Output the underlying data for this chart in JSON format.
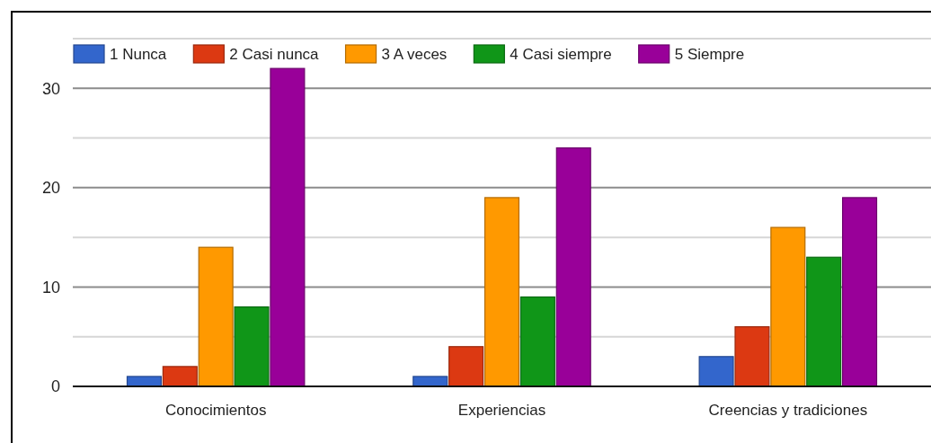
{
  "chart_data": {
    "type": "bar",
    "categories": [
      "Conocimientos",
      "Experiencias",
      "Creencias y tradiciones"
    ],
    "series": [
      {
        "name": "1 Nunca",
        "color": "#3366cc",
        "values": [
          1,
          1,
          3
        ]
      },
      {
        "name": "2 Casi nunca",
        "color": "#dc3912",
        "values": [
          2,
          4,
          6
        ]
      },
      {
        "name": "3 A veces",
        "color": "#ff9900",
        "values": [
          14,
          19,
          16
        ]
      },
      {
        "name": "4 Casi siempre",
        "color": "#109618",
        "values": [
          8,
          9,
          13
        ]
      },
      {
        "name": "5 Siempre",
        "color": "#990099",
        "values": [
          32,
          24,
          19
        ]
      }
    ],
    "ylim": [
      0,
      35
    ],
    "yticks": [
      0,
      {
        "value": 5,
        "label": null
      },
      10,
      {
        "value": 15,
        "label": null
      },
      20,
      {
        "value": 25,
        "label": null
      },
      30,
      {
        "value": 35,
        "label": null
      }
    ],
    "grid": "y",
    "legend": "top left"
  }
}
